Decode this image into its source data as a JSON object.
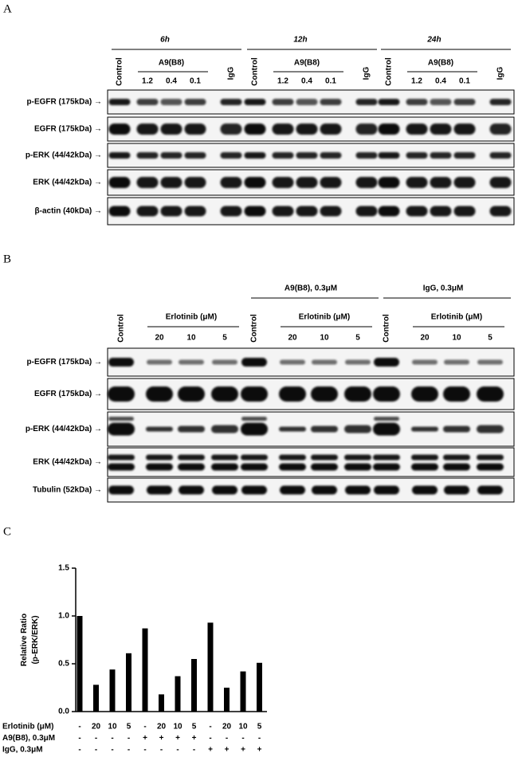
{
  "panel_a": {
    "label": "A",
    "groups": [
      {
        "time": "6h",
        "control": "Control",
        "treatment": "A9(B8)",
        "doses": [
          "1.2",
          "0.4",
          "0.1"
        ],
        "igg": "IgG"
      },
      {
        "time": "12h",
        "control": "Control",
        "treatment": "A9(B8)",
        "doses": [
          "1.2",
          "0.4",
          "0.1"
        ],
        "igg": "IgG"
      },
      {
        "time": "24h",
        "control": "Control",
        "treatment": "A9(B8)",
        "doses": [
          "1.2",
          "0.4",
          "0.1"
        ],
        "igg": "IgG"
      }
    ],
    "rows": [
      "p-EGFR (175kDa) →",
      "EGFR (175kDa) →",
      "p-ERK (44/42kDa) →",
      "ERK (44/42kDa) →",
      "β-actin (40kDa) →"
    ]
  },
  "panel_b": {
    "label": "B",
    "groups": [
      {
        "control": "Control",
        "treatment": "Erlotinib (μM)",
        "doses": [
          "20",
          "10",
          "5"
        ]
      },
      {
        "header": "A9(B8), 0.3μM",
        "control": "Control",
        "treatment": "Erlotinib (μM)",
        "doses": [
          "20",
          "10",
          "5"
        ]
      },
      {
        "header": "IgG, 0.3μM",
        "control": "Control",
        "treatment": "Erlotinib (μM)",
        "doses": [
          "20",
          "10",
          "5"
        ]
      }
    ],
    "rows": [
      "p-EGFR (175kDa) →",
      "EGFR (175kDa) →",
      "p-ERK (44/42kDa) →",
      "ERK (44/42kDa) →",
      "Tubulin (52kDa) →"
    ]
  },
  "chart_data": {
    "type": "bar",
    "panel_label": "C",
    "y_label": "Relative Ratio (p-ERK/ERK)",
    "values": [
      1.0,
      0.28,
      0.44,
      0.61,
      0.87,
      0.18,
      0.37,
      0.55,
      0.93,
      0.25,
      0.42,
      0.51
    ],
    "color": "#000000",
    "ylim": [
      0,
      1.5
    ],
    "yticks": [
      {
        "value": 0,
        "label": "0.0"
      },
      {
        "value": 0.5,
        "label": "0.5"
      },
      {
        "value": 1,
        "label": "1.0"
      },
      {
        "value": 1.5,
        "label": "1.5"
      }
    ],
    "condition_rows": [
      {
        "label": "Erlotinib (μM)",
        "entries": [
          "-",
          "20",
          "10",
          "5",
          "-",
          "20",
          "10",
          "5",
          "-",
          "20",
          "10",
          "5"
        ]
      },
      {
        "label": "A9(B8), 0.3μM",
        "entries": [
          "-",
          "-",
          "-",
          "-",
          "+",
          "+",
          "+",
          "+",
          "-",
          "-",
          "-",
          "-"
        ]
      },
      {
        "label": "IgG, 0.3μM",
        "entries": [
          "-",
          "-",
          "-",
          "-",
          "-",
          "-",
          "-",
          "-",
          "+",
          "+",
          "+",
          "+"
        ]
      }
    ]
  }
}
